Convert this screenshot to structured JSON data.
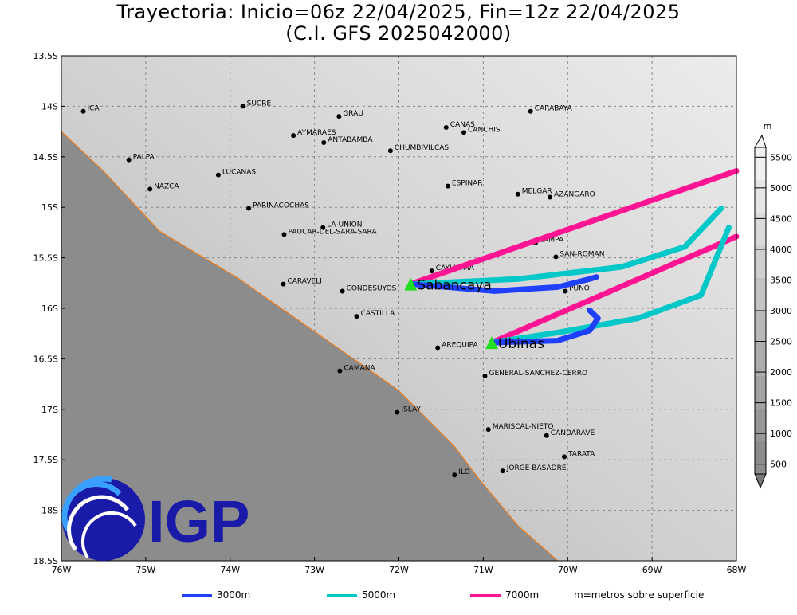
{
  "title": {
    "line1": "Trayectoria: Inicio=06z 22/04/2025, Fin=12z 22/04/2025",
    "line2": "(C.I. GFS 2025042000)"
  },
  "axes": {
    "lon_range": [
      -76,
      -68
    ],
    "lat_range": [
      -18.5,
      -13.5
    ],
    "x_ticks": [
      "76W",
      "75W",
      "74W",
      "73W",
      "72W",
      "71W",
      "70W",
      "69W",
      "68W"
    ],
    "y_ticks": [
      "13.5S",
      "14S",
      "14.5S",
      "15S",
      "15.5S",
      "16S",
      "16.5S",
      "17S",
      "17.5S",
      "18S",
      "18.5S"
    ]
  },
  "colorbar": {
    "unit": "m",
    "labels": [
      "500",
      "1000",
      "1500",
      "2000",
      "2500",
      "3000",
      "3500",
      "4000",
      "4500",
      "5000",
      "5500"
    ]
  },
  "cities": [
    {
      "name": "ICA",
      "lon": -75.74,
      "lat": -14.05
    },
    {
      "name": "SUCRE",
      "lon": -73.85,
      "lat": -14.0
    },
    {
      "name": "GRAU",
      "lon": -72.71,
      "lat": -14.1
    },
    {
      "name": "AYMARAES",
      "lon": -73.25,
      "lat": -14.29
    },
    {
      "name": "ANTABAMBA",
      "lon": -72.89,
      "lat": -14.36
    },
    {
      "name": "CHUMBIVILCAS",
      "lon": -72.1,
      "lat": -14.44
    },
    {
      "name": "CANAS",
      "lon": -71.44,
      "lat": -14.21
    },
    {
      "name": "CANCHIS",
      "lon": -71.23,
      "lat": -14.26
    },
    {
      "name": "CARABAYA",
      "lon": -70.44,
      "lat": -14.05
    },
    {
      "name": "PALPA",
      "lon": -75.2,
      "lat": -14.53
    },
    {
      "name": "LUCANAS",
      "lon": -74.14,
      "lat": -14.68
    },
    {
      "name": "NAZCA",
      "lon": -74.95,
      "lat": -14.82
    },
    {
      "name": "ESPINAR",
      "lon": -71.42,
      "lat": -14.79
    },
    {
      "name": "MELGAR",
      "lon": -70.59,
      "lat": -14.87
    },
    {
      "name": "AZANGARO",
      "lon": -70.21,
      "lat": -14.9
    },
    {
      "name": "PARINACOCHAS",
      "lon": -73.78,
      "lat": -15.01
    },
    {
      "name": "LA-UNION",
      "lon": -72.9,
      "lat": -15.2
    },
    {
      "name": "PAUCAR-DEL-SARA-SARA",
      "lon": -73.36,
      "lat": -15.27
    },
    {
      "name": "LAMPA",
      "lon": -70.38,
      "lat": -15.35
    },
    {
      "name": "SAN-ROMAN",
      "lon": -70.14,
      "lat": -15.49
    },
    {
      "name": "CAYLLOMA",
      "lon": -71.61,
      "lat": -15.63
    },
    {
      "name": "CARAVELI",
      "lon": -73.37,
      "lat": -15.76
    },
    {
      "name": "CONDESUYOS",
      "lon": -72.67,
      "lat": -15.83
    },
    {
      "name": "PUNO",
      "lon": -70.03,
      "lat": -15.83
    },
    {
      "name": "CASTILLA",
      "lon": -72.5,
      "lat": -16.08
    },
    {
      "name": "AREQUIPA",
      "lon": -71.54,
      "lat": -16.39
    },
    {
      "name": "CAMANA",
      "lon": -72.7,
      "lat": -16.62
    },
    {
      "name": "GENERAL-SANCHEZ-CERRO",
      "lon": -70.98,
      "lat": -16.67
    },
    {
      "name": "ISLAY",
      "lon": -72.02,
      "lat": -17.03
    },
    {
      "name": "MARISCAL-NIETO",
      "lon": -70.94,
      "lat": -17.2
    },
    {
      "name": "CANDARAVE",
      "lon": -70.25,
      "lat": -17.26
    },
    {
      "name": "TARATA",
      "lon": -70.04,
      "lat": -17.47
    },
    {
      "name": "ILO",
      "lon": -71.34,
      "lat": -17.65
    },
    {
      "name": "JORGE-BASADRE",
      "lon": -70.77,
      "lat": -17.61
    }
  ],
  "volcanoes": [
    {
      "name": "Sabancaya",
      "lon": -71.86,
      "lat": -15.76
    },
    {
      "name": "Ubinas",
      "lon": -70.9,
      "lat": -16.34
    }
  ],
  "trajectories": [
    {
      "volcano": "Sabancaya",
      "level": "7000m",
      "color": "#ff1493",
      "points": [
        [
          -71.86,
          -15.76
        ],
        [
          -68.0,
          -14.64
        ]
      ]
    },
    {
      "volcano": "Sabancaya",
      "level": "5000m",
      "color": "#00c8c8",
      "points": [
        [
          -71.86,
          -15.76
        ],
        [
          -70.59,
          -15.71
        ],
        [
          -69.36,
          -15.59
        ],
        [
          -68.61,
          -15.39
        ],
        [
          -68.18,
          -15.01
        ]
      ]
    },
    {
      "volcano": "Sabancaya",
      "level": "3000m",
      "color": "#2040ff",
      "points": [
        [
          -71.86,
          -15.76
        ],
        [
          -70.87,
          -15.83
        ],
        [
          -70.12,
          -15.79
        ],
        [
          -69.74,
          -15.71
        ],
        [
          -69.66,
          -15.69
        ]
      ]
    },
    {
      "volcano": "Ubinas",
      "level": "7000m",
      "color": "#ff1493",
      "points": [
        [
          -70.9,
          -16.34
        ],
        [
          -68.0,
          -15.29
        ]
      ]
    },
    {
      "volcano": "Ubinas",
      "level": "5000m",
      "color": "#00c8c8",
      "points": [
        [
          -70.9,
          -16.34
        ],
        [
          -70.12,
          -16.24
        ],
        [
          -69.17,
          -16.1
        ],
        [
          -68.42,
          -15.87
        ],
        [
          -68.09,
          -15.2
        ]
      ]
    },
    {
      "volcano": "Ubinas",
      "level": "3000m",
      "color": "#2040ff",
      "points": [
        [
          -70.9,
          -16.34
        ],
        [
          -70.12,
          -16.32
        ],
        [
          -69.74,
          -16.22
        ],
        [
          -69.64,
          -16.1
        ],
        [
          -69.74,
          -16.02
        ]
      ]
    }
  ],
  "legend": {
    "items": [
      {
        "label": "3000m",
        "color": "#2040ff"
      },
      {
        "label": "5000m",
        "color": "#00c8c8"
      },
      {
        "label": "7000m",
        "color": "#ff1493"
      }
    ],
    "note": "m=metros sobre superficie"
  },
  "logo": {
    "text": "IGP",
    "color": "#1a1aa8"
  }
}
